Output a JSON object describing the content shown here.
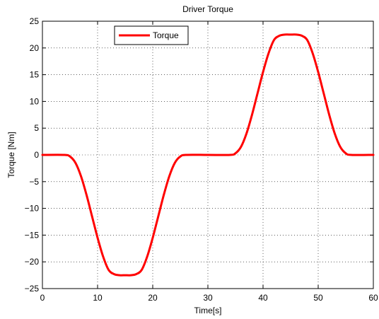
{
  "chart_data": {
    "type": "line",
    "title": "Driver Torque",
    "xlabel": "Time[s]",
    "ylabel": "Torque [Nm]",
    "xlim": [
      0,
      60
    ],
    "ylim": [
      -25,
      25
    ],
    "xticks": [
      0,
      10,
      20,
      30,
      40,
      50,
      60
    ],
    "yticks": [
      -25,
      -20,
      -15,
      -10,
      -5,
      0,
      5,
      10,
      15,
      20,
      25
    ],
    "grid": true,
    "legend_position": "top-left",
    "series": [
      {
        "name": "Torque",
        "color": "#ff0000",
        "x": [
          0,
          4,
          5,
          6,
          7,
          8,
          9,
          10,
          11,
          12,
          13,
          14,
          15,
          16,
          17,
          18,
          19,
          20,
          21,
          22,
          23,
          24,
          25,
          26,
          30,
          34,
          35,
          36,
          37,
          38,
          39,
          40,
          41,
          42,
          43,
          44,
          45,
          46,
          47,
          48,
          49,
          50,
          51,
          52,
          53,
          54,
          55,
          56,
          60
        ],
        "y": [
          0,
          0,
          -0.3,
          -1.5,
          -4,
          -7.5,
          -11.5,
          -15.5,
          -19,
          -21.5,
          -22.3,
          -22.5,
          -22.5,
          -22.5,
          -22.3,
          -21.5,
          -19,
          -15.5,
          -11.5,
          -7.5,
          -4,
          -1.5,
          -0.3,
          0,
          0,
          0,
          0.3,
          1.5,
          4,
          7.5,
          11.5,
          15.5,
          19,
          21.5,
          22.3,
          22.5,
          22.5,
          22.5,
          22.3,
          21.5,
          19,
          15.5,
          11.5,
          7.5,
          4,
          1.5,
          0.3,
          0,
          0
        ]
      }
    ]
  }
}
